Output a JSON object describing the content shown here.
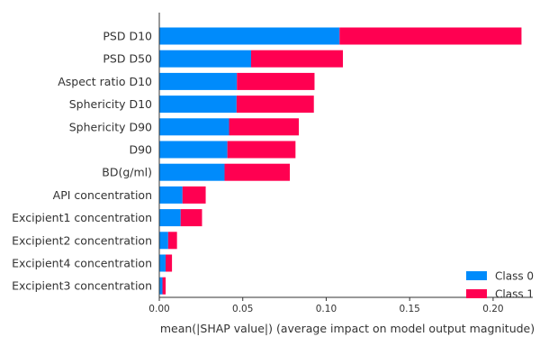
{
  "chart_data": {
    "type": "bar",
    "orientation": "horizontal",
    "stacked": true,
    "categories": [
      "PSD D10",
      "PSD D50",
      "Aspect ratio D10",
      "Sphericity D10",
      "Sphericity D90",
      "D90",
      "BD(g/ml)",
      "API concentration",
      "Excipient1 concentration",
      "Excipient2 concentration",
      "Excipient4 concentration",
      "Excipient3 concentration"
    ],
    "series": [
      {
        "name": "Class 0",
        "color": "#008bfb",
        "values": [
          0.108,
          0.055,
          0.0465,
          0.0463,
          0.0418,
          0.0408,
          0.0391,
          0.0139,
          0.0128,
          0.0053,
          0.0038,
          0.0019
        ]
      },
      {
        "name": "Class 1",
        "color": "#ff0051",
        "values": [
          0.109,
          0.055,
          0.0465,
          0.0463,
          0.0418,
          0.0408,
          0.0391,
          0.0139,
          0.0128,
          0.0053,
          0.0038,
          0.0019
        ]
      }
    ],
    "xlabel": "mean(|SHAP value|) (average impact on model output magnitude)",
    "xlim": [
      0,
      0.22
    ],
    "xticks": [
      "0.00",
      "0.05",
      "0.10",
      "0.15",
      "0.20"
    ],
    "grid": false,
    "legend_position": "bottom-right"
  }
}
